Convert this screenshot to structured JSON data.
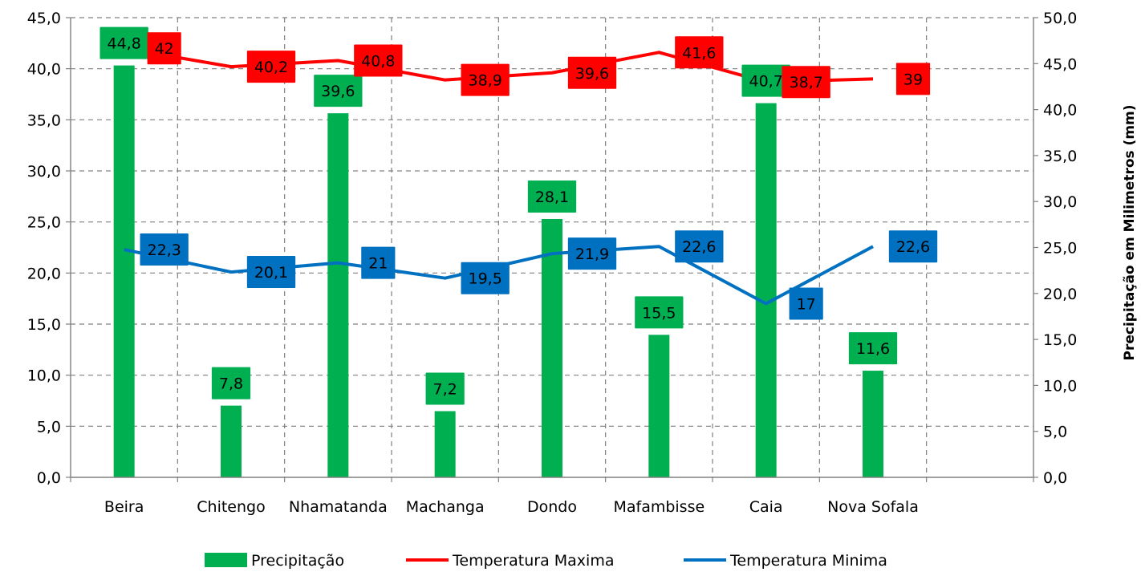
{
  "chart_data": {
    "type": "bar+line",
    "categories": [
      "Beira",
      "Chitengo",
      "Nhamatanda",
      "Machanga",
      "Dondo",
      "Mafambisse",
      "Caia",
      "Nova Sofala"
    ],
    "bars": {
      "name": "Precipitação",
      "axis": "right",
      "values": [
        44.8,
        7.8,
        39.6,
        7.2,
        28.1,
        15.5,
        40.7,
        11.6
      ],
      "labels": [
        "44,8",
        "7,8",
        "39,6",
        "7,2",
        "28,1",
        "15,5",
        "40,7",
        "11,6"
      ],
      "color": "#00b050"
    },
    "series": [
      {
        "name": "Temperatura Maxima",
        "axis": "left",
        "values": [
          42,
          40.2,
          40.8,
          38.9,
          39.6,
          41.6,
          38.7,
          39
        ],
        "labels": [
          "42",
          "40,2",
          "40,8",
          "38,9",
          "39,6",
          "41,6",
          "38,7",
          "39"
        ],
        "color": "#ff0000"
      },
      {
        "name": "Temperatura Minima",
        "axis": "left",
        "values": [
          22.3,
          20.1,
          21,
          19.5,
          21.9,
          22.6,
          17,
          22.6
        ],
        "labels": [
          "22,3",
          "20,1",
          "21",
          "19,5",
          "21,9",
          "22,6",
          "17",
          "22,6"
        ],
        "color": "#0070c0"
      }
    ],
    "y_left": {
      "ylim": [
        0,
        45
      ],
      "ticks": [
        "0,0",
        "5,0",
        "10,0",
        "15,0",
        "20,0",
        "25,0",
        "30,0",
        "35,0",
        "40,0",
        "45,0"
      ],
      "label": ""
    },
    "y_right": {
      "ylim": [
        0,
        50
      ],
      "ticks": [
        "0,0",
        "5,0",
        "10,0",
        "15,0",
        "20,0",
        "25,0",
        "30,0",
        "35,0",
        "40,0",
        "45,0",
        "50,0"
      ],
      "label": "Precipitação em Milimetros (mm)"
    },
    "x_slots": 9,
    "grid": "dashed-horizontal + dashed-vertical",
    "legend": {
      "placement": "bottom",
      "entries": [
        "Precipitação",
        "Temperatura Maxima",
        "Temperatura Minima"
      ]
    },
    "title": ""
  }
}
